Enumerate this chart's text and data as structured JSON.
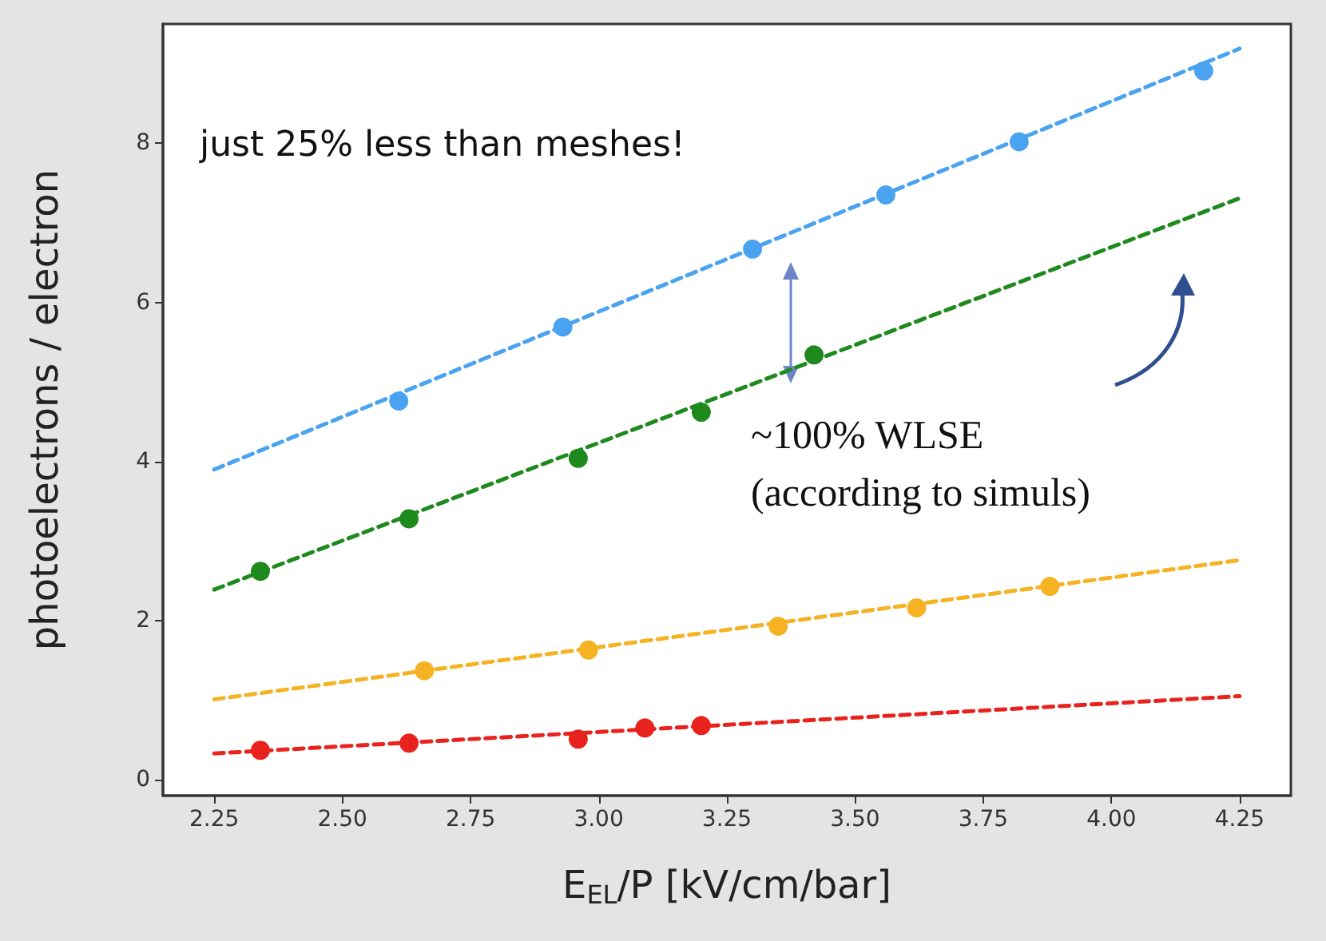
{
  "chart_data": {
    "type": "scatter",
    "xlabel": "E$_{EL}$/P [kV/cm/bar]",
    "ylabel": "photoelectrons / electron",
    "xlim": [
      2.15,
      4.35
    ],
    "ylim": [
      -0.2,
      9.5
    ],
    "xticks": [
      2.25,
      {
        "value": 2.5,
        "label": "2.50"
      },
      2.75,
      {
        "value": 3.0,
        "label": "3.00"
      },
      3.25,
      {
        "value": 3.5,
        "label": "3.50"
      },
      3.75,
      {
        "value": 4.0,
        "label": "4.00"
      },
      4.25
    ],
    "yticks": [
      0,
      2,
      4,
      6,
      8
    ],
    "line_style": "dashed",
    "annotations": [
      "just 25% less than meshes!",
      "~100% WLSE\n(according to simuls)"
    ],
    "series": [
      {
        "type": "line",
        "marker": "none",
        "color": "#4aa3f0",
        "x": [
          2.25,
          4.25
        ],
        "values": [
          3.9,
          9.19
        ]
      },
      {
        "type": "line",
        "marker": "none",
        "color": "#1e8a1e",
        "x": [
          2.25,
          4.25
        ],
        "values": [
          2.39,
          7.31
        ]
      },
      {
        "type": "line",
        "marker": "none",
        "color": "#f5b223",
        "x": [
          2.25,
          4.25
        ],
        "values": [
          1.01,
          2.76
        ]
      },
      {
        "type": "line",
        "marker": "none",
        "color": "#e8231e",
        "x": [
          2.25,
          4.25
        ],
        "values": [
          0.33,
          1.05
        ]
      },
      {
        "marker": "circle",
        "color": "#4aa3f0",
        "x": [
          2.61,
          2.93,
          3.3,
          3.56,
          3.82,
          4.18
        ],
        "values": [
          4.76,
          5.69,
          6.67,
          7.35,
          8.02,
          8.91
        ]
      },
      {
        "marker": "circle",
        "color": "#1e8a1e",
        "x": [
          2.34,
          2.63,
          2.96,
          3.2,
          3.42
        ],
        "values": [
          2.62,
          3.28,
          4.04,
          4.62,
          5.34
        ]
      },
      {
        "marker": "circle",
        "color": "#f5b223",
        "x": [
          2.66,
          2.98,
          3.35,
          3.62,
          3.88
        ],
        "values": [
          1.37,
          1.63,
          1.93,
          2.16,
          2.43
        ]
      },
      {
        "marker": "circle",
        "color": "#e8231e",
        "x": [
          2.34,
          2.63,
          2.96,
          3.09,
          3.2
        ],
        "values": [
          0.37,
          0.46,
          0.51,
          0.65,
          0.68
        ]
      }
    ]
  }
}
